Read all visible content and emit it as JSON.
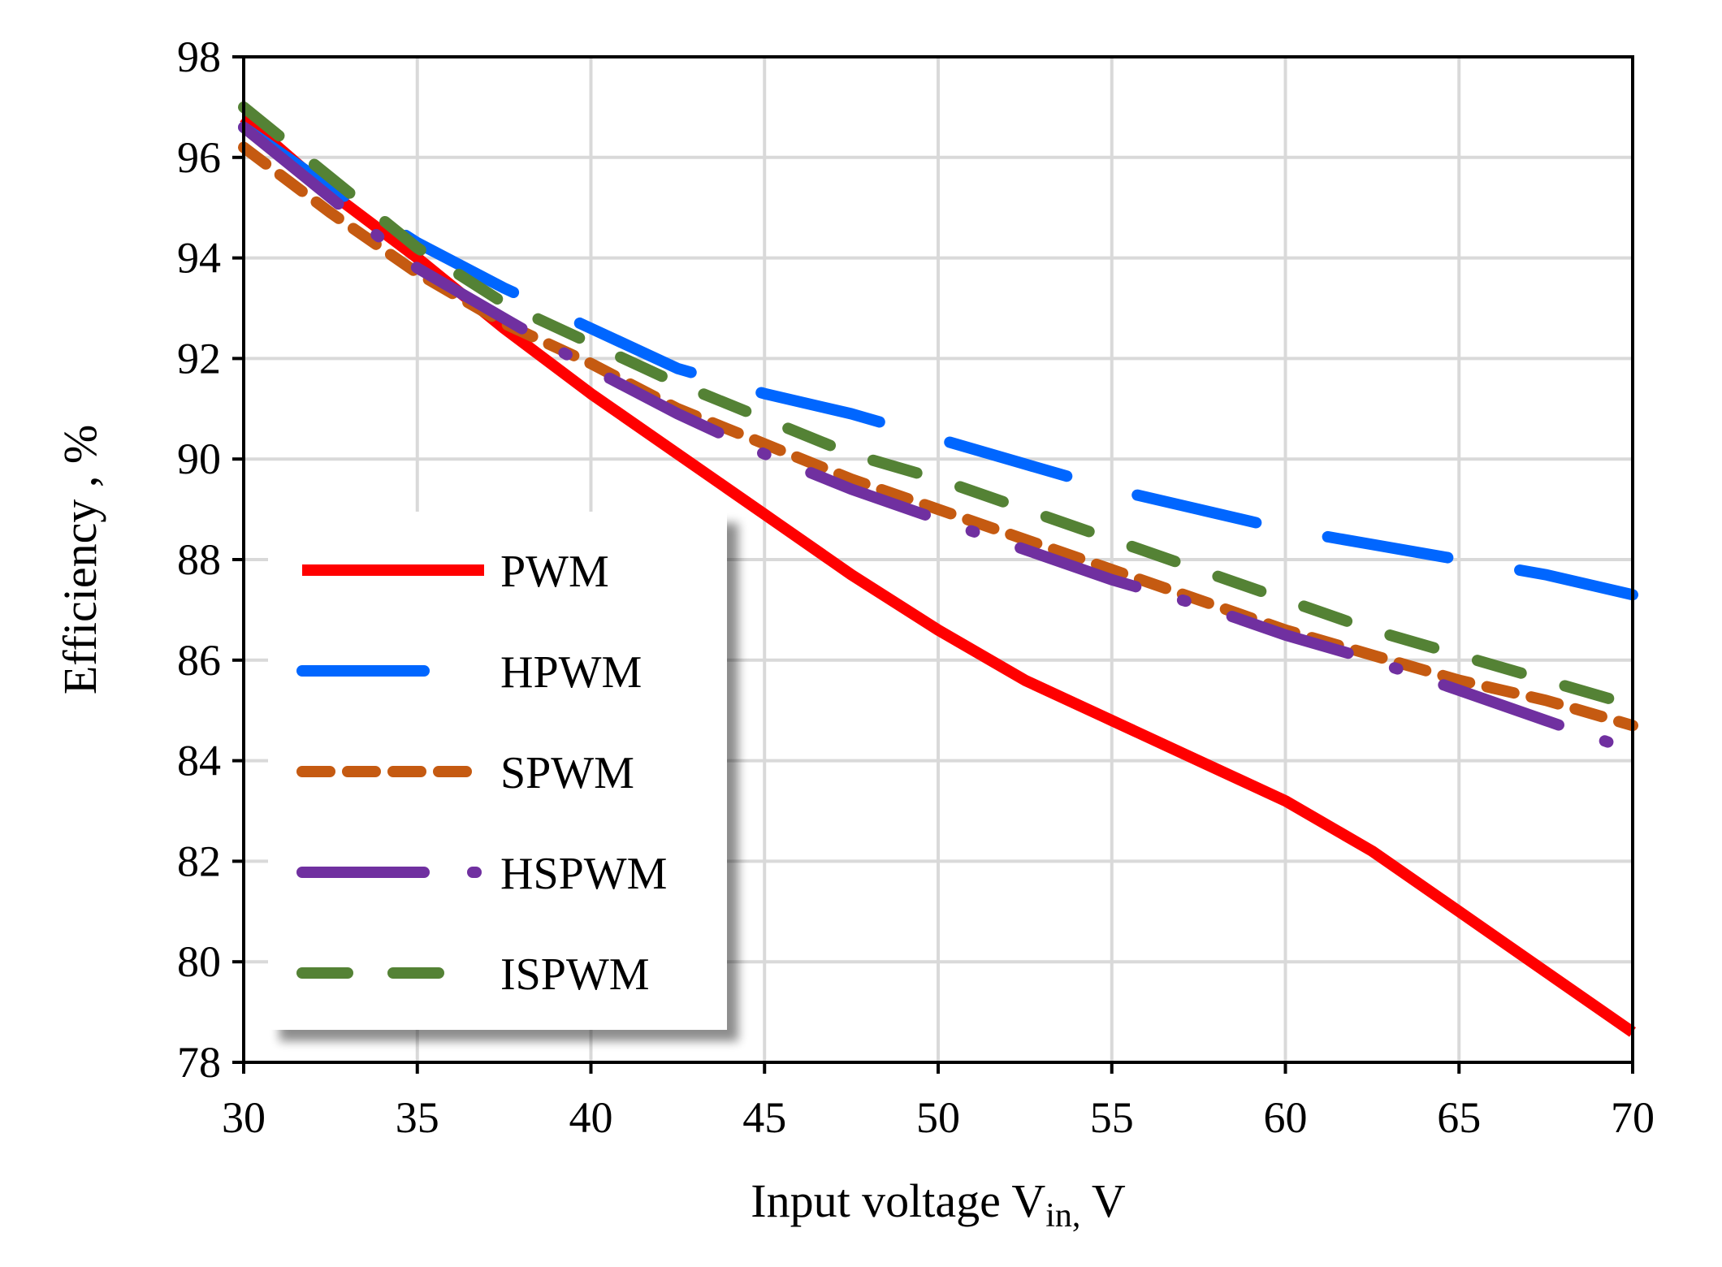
{
  "chart_data": {
    "type": "line",
    "title": "",
    "xlabel": "Input voltage V",
    "xlabel_subscript": "in,",
    "xlabel_suffix": " V",
    "ylabel": "Efficiency , %",
    "xlim": [
      30,
      70
    ],
    "ylim": [
      78,
      98
    ],
    "xticks": [
      30,
      35,
      40,
      45,
      50,
      55,
      60,
      65,
      70
    ],
    "yticks": [
      78,
      80,
      82,
      84,
      86,
      88,
      90,
      92,
      94,
      96,
      98
    ],
    "grid": true,
    "legend_position": "left-middle",
    "series": [
      {
        "name": "PWM",
        "color": "#ff0000",
        "style": "solid",
        "x": [
          30,
          32.5,
          35,
          37.5,
          40,
          42.5,
          45,
          47.5,
          50,
          52.5,
          55,
          57.5,
          60,
          62.5,
          65,
          67.5,
          70
        ],
        "y": [
          96.8,
          95.3,
          94.0,
          92.6,
          91.3,
          90.1,
          88.9,
          87.7,
          86.6,
          85.6,
          84.8,
          84.0,
          83.2,
          82.2,
          81.0,
          79.8,
          78.6
        ]
      },
      {
        "name": "HPWM",
        "color": "#0066ff",
        "style": "long-dash",
        "x": [
          30,
          32.5,
          35,
          37.5,
          40,
          42.5,
          45,
          47.5,
          50,
          52.5,
          55,
          57.5,
          60,
          62.5,
          65,
          67.5,
          70
        ],
        "y": [
          96.6,
          95.4,
          94.3,
          93.4,
          92.6,
          91.8,
          91.3,
          90.9,
          90.4,
          89.9,
          89.4,
          89.0,
          88.6,
          88.3,
          88.0,
          87.7,
          87.3
        ]
      },
      {
        "name": "SPWM",
        "color": "#c55a11",
        "style": "dash",
        "x": [
          30,
          32.5,
          35,
          37.5,
          40,
          42.5,
          45,
          47.5,
          50,
          52.5,
          55,
          57.5,
          60,
          62.5,
          65,
          67.5,
          70
        ],
        "y": [
          96.2,
          94.9,
          93.7,
          92.7,
          91.9,
          91.0,
          90.3,
          89.6,
          89.0,
          88.4,
          87.8,
          87.2,
          86.6,
          86.1,
          85.6,
          85.2,
          84.7
        ]
      },
      {
        "name": "HSPWM",
        "color": "#7030a0",
        "style": "dash-dot",
        "x": [
          30,
          32.5,
          35,
          37.5,
          40,
          42.5,
          45,
          47.5,
          50,
          52.5,
          55,
          57.5,
          60,
          62.5,
          65,
          67.5,
          70
        ],
        "y": [
          96.6,
          95.2,
          93.8,
          92.8,
          91.8,
          90.9,
          90.1,
          89.4,
          88.8,
          88.2,
          87.6,
          87.1,
          86.5,
          86.0,
          85.4,
          84.8,
          84.2
        ]
      },
      {
        "name": "ISPWM",
        "color": "#548235",
        "style": "medium-dash",
        "x": [
          30,
          32.5,
          35,
          37.5,
          40,
          42.5,
          45,
          47.5,
          50,
          52.5,
          55,
          57.5,
          60,
          62.5,
          65,
          67.5,
          70
        ],
        "y": [
          97.0,
          95.6,
          94.2,
          93.1,
          92.3,
          91.5,
          90.8,
          90.1,
          89.6,
          89.0,
          88.4,
          87.8,
          87.2,
          86.6,
          86.1,
          85.6,
          85.1
        ]
      }
    ]
  }
}
